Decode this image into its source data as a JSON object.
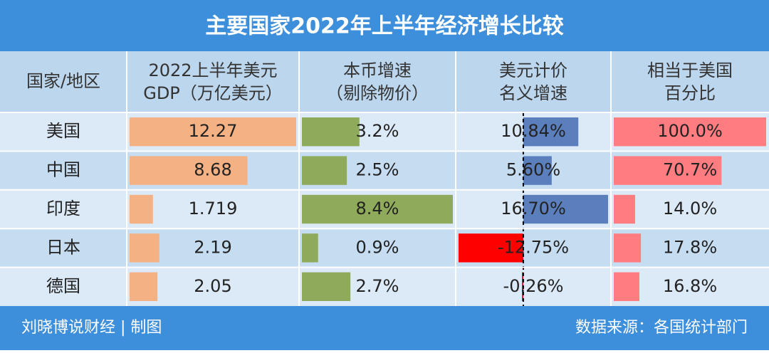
{
  "title": "主要国家2022年上半年经济增长比较",
  "table": {
    "header": [
      [
        "国家/地区"
      ],
      [
        "2022上半年美元",
        "GDP（万亿美元）"
      ],
      [
        "本币增速",
        "（剔除物价）"
      ],
      [
        "美元计价",
        "名义增速"
      ],
      [
        "相当于美国",
        "百分比"
      ]
    ],
    "rows": [
      [
        "美国",
        12.27,
        {
          "value": 3.2,
          "label": "3.2%"
        },
        {
          "value": 10.84,
          "label": "10.84%"
        },
        {
          "value": 100.0,
          "label": "100.0%"
        }
      ],
      [
        "中国",
        8.68,
        {
          "value": 2.5,
          "label": "2.5%"
        },
        {
          "value": 5.6,
          "label": "5.60%"
        },
        {
          "value": 70.7,
          "label": "70.7%"
        }
      ],
      [
        "印度",
        1.719,
        {
          "value": 8.4,
          "label": "8.4%"
        },
        {
          "value": 16.7,
          "label": "16.70%"
        },
        {
          "value": 14.0,
          "label": "14.0%"
        }
      ],
      [
        "日本",
        2.19,
        {
          "value": 0.9,
          "label": "0.9%"
        },
        {
          "value": -12.75,
          "label": "-12.75%"
        },
        {
          "value": 17.8,
          "label": "17.8%"
        }
      ],
      [
        "德国",
        2.05,
        {
          "value": 2.7,
          "label": "2.7%"
        },
        {
          "value": -0.26,
          "label": "-0.26%"
        },
        {
          "value": 16.8,
          "label": "16.8%"
        }
      ]
    ]
  },
  "footer": {
    "left": "刘晓博说财经 | 制图",
    "right": "数据来源：各国统计部门"
  }
}
